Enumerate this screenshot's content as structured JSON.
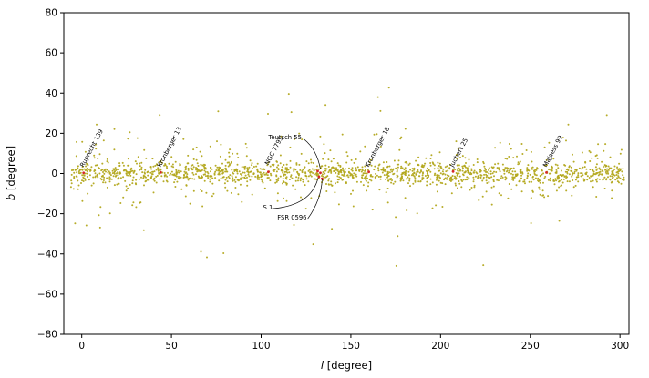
{
  "figure": {
    "background": "#ffffff"
  },
  "chart_data": {
    "type": "scatter",
    "title": "",
    "xlabel": "l [degree]",
    "ylabel": "b [degree]",
    "xlabel_var": "l",
    "xlabel_unit": " [degree]",
    "ylabel_var": "b",
    "ylabel_unit": " [degree]",
    "xlim": [
      -10,
      305
    ],
    "ylim": [
      -80,
      80
    ],
    "xticks": [
      0,
      50,
      100,
      150,
      200,
      250,
      300
    ],
    "yticks": [
      -80,
      -60,
      -40,
      -20,
      0,
      20,
      40,
      60,
      80
    ],
    "grid": false,
    "legend": "none",
    "point_color": "#b3a81e",
    "highlight_color": "#d62728",
    "cloud": {
      "seed": 42,
      "l_min": -6,
      "l_max": 303,
      "groups": [
        {
          "n": 1250,
          "b_sigma": 2.6,
          "b_clip": 10
        },
        {
          "n": 380,
          "b_sigma": 7.0,
          "b_clip": 24
        },
        {
          "n": 170,
          "b_sigma": 16.0,
          "b_clip": 47
        }
      ]
    },
    "highlight_points": [
      [
        131.5,
        1.2
      ],
      [
        133.0,
        0.3
      ],
      [
        132.2,
        -1.6
      ],
      [
        134.0,
        -2.6
      ],
      [
        1.0,
        0.3
      ],
      [
        44.0,
        0.6
      ],
      [
        104.0,
        0.8
      ],
      [
        160.0,
        0.8
      ],
      [
        207.0,
        1.0
      ],
      [
        259.0,
        0.5
      ]
    ],
    "cluster_labels": [
      {
        "text": "Ruprecht 139",
        "l": 1,
        "b": 3,
        "rotation": -62
      },
      {
        "text": "Kronberger 13",
        "l": 44,
        "b": 3,
        "rotation": -62
      },
      {
        "text": "NGC 7795",
        "l": 104,
        "b": 4,
        "rotation": -62
      },
      {
        "text": "Kronberger 18",
        "l": 160,
        "b": 3,
        "rotation": -62
      },
      {
        "text": "Juchert 25",
        "l": 207,
        "b": 3,
        "rotation": -62
      },
      {
        "text": "Majaess 99",
        "l": 259,
        "b": 3,
        "rotation": -62
      }
    ],
    "arrow_annotations": [
      {
        "text": "Teutsch 55",
        "text_l": 104,
        "text_b": 17,
        "from": [
          124,
          17
        ],
        "ctrl": [
          131,
          12
        ],
        "to": [
          133,
          2.2
        ]
      },
      {
        "text": "S 1",
        "text_l": 101,
        "text_b": -18,
        "from": [
          106,
          -17.5
        ],
        "ctrl": [
          128,
          -16
        ],
        "to": [
          131.8,
          -2.0
        ]
      },
      {
        "text": "FSR 0596",
        "text_l": 109,
        "text_b": -23,
        "from": [
          126,
          -22.5
        ],
        "ctrl": [
          133.5,
          -13
        ],
        "to": [
          134,
          -3.0
        ]
      }
    ]
  }
}
